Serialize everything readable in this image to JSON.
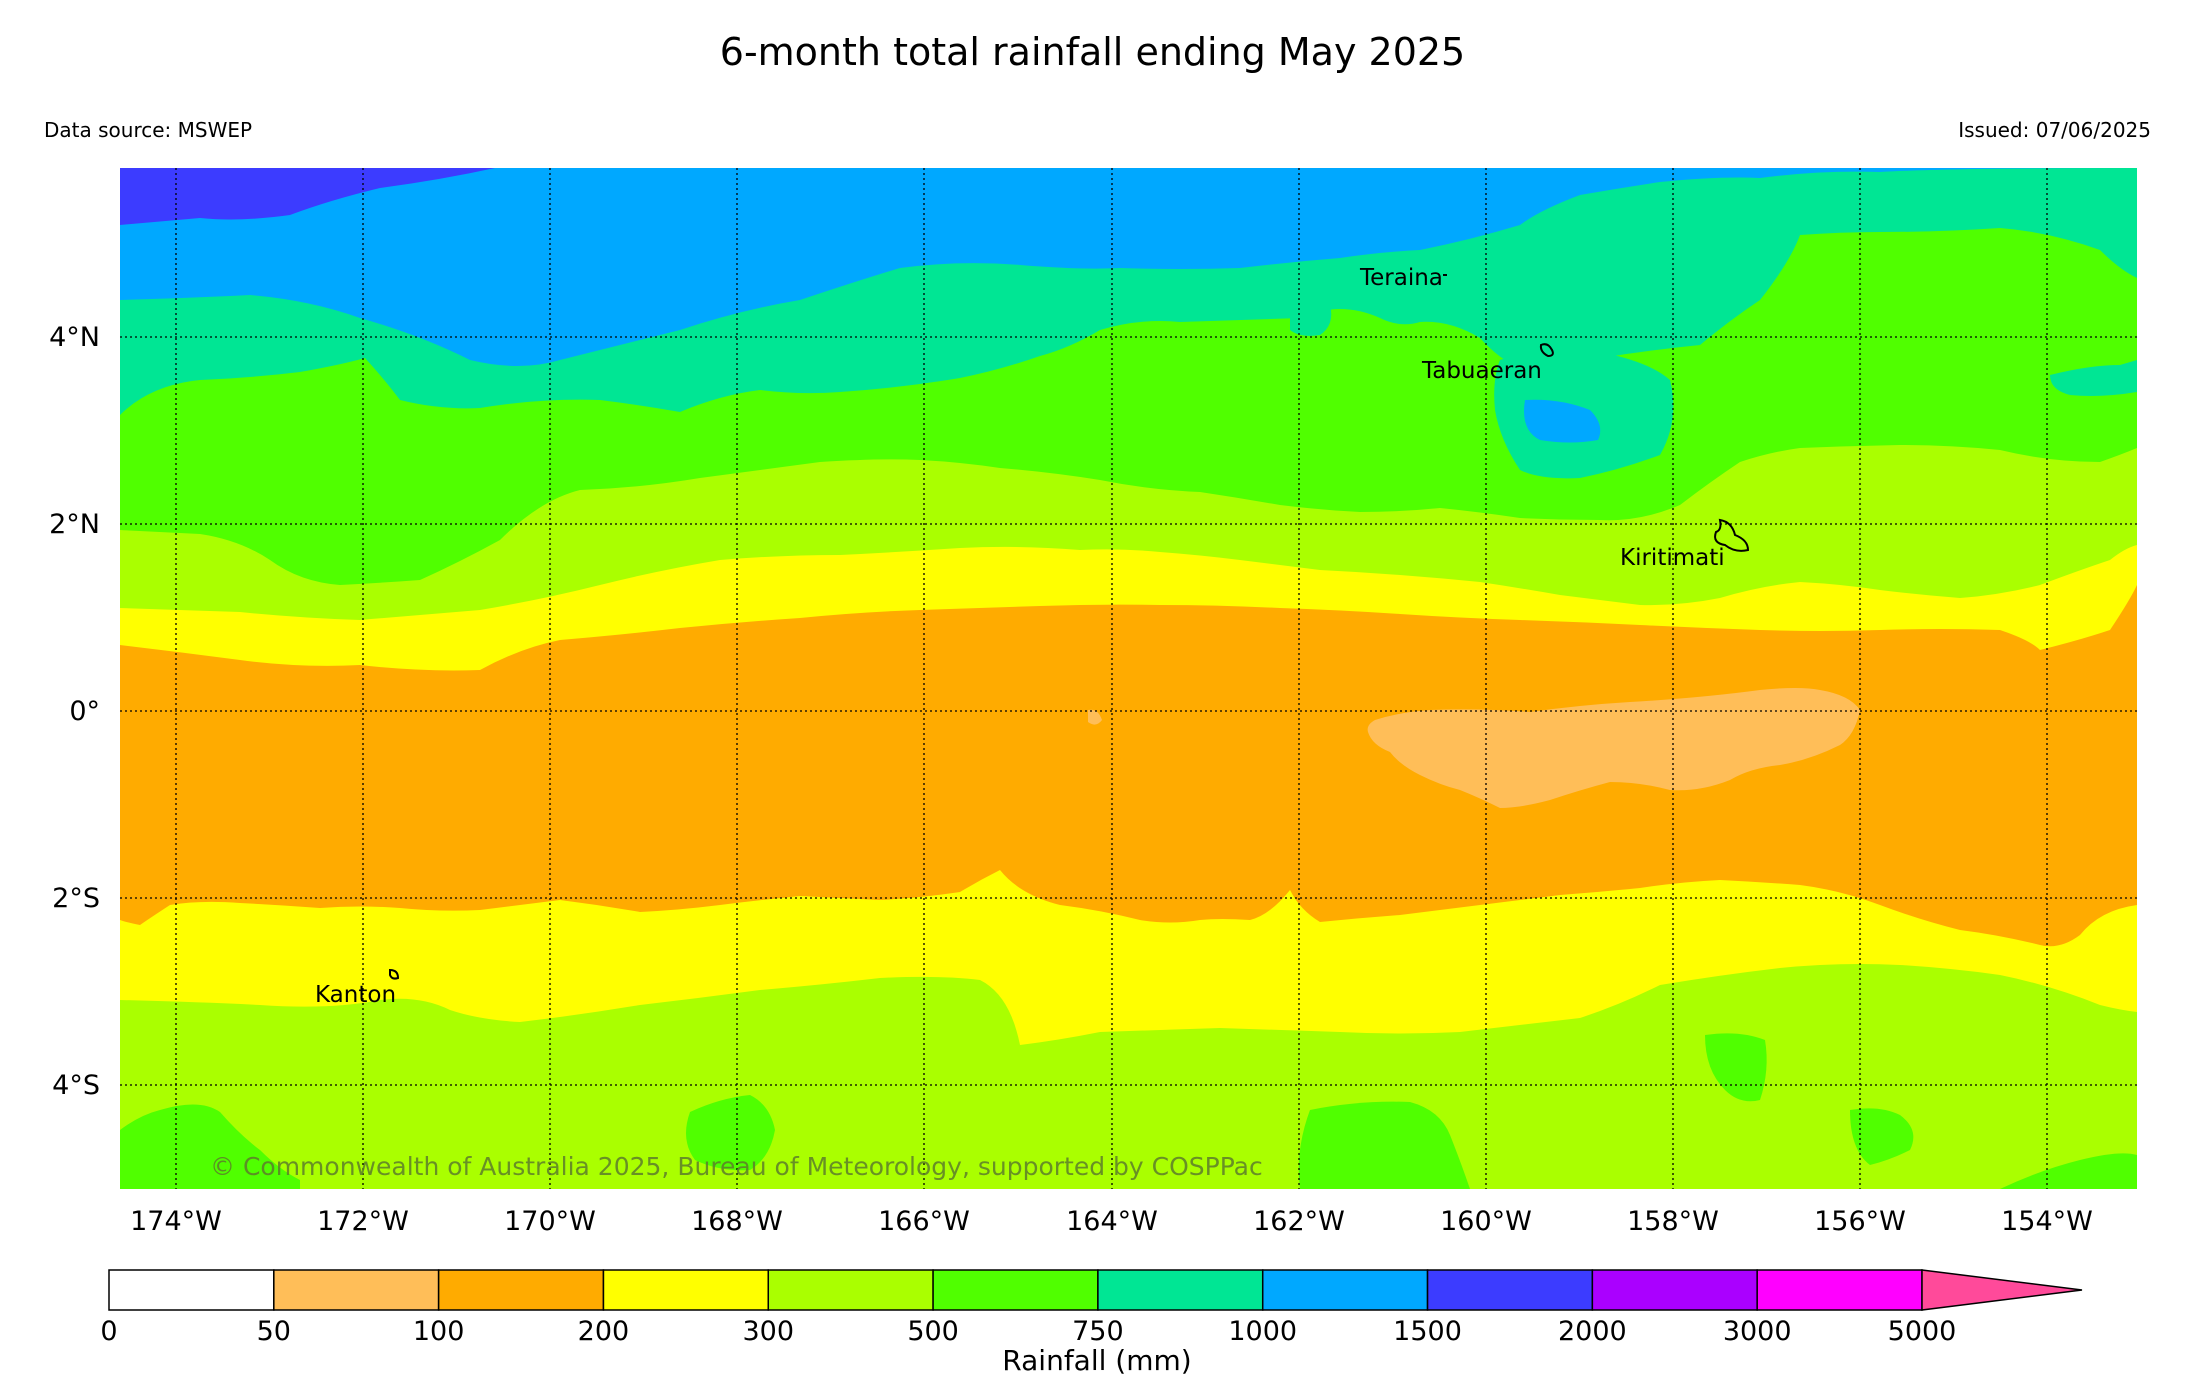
{
  "title": "6-month total rainfall ending May 2025",
  "data_source": "Data source: MSWEP",
  "issued": "Issued: 07/06/2025",
  "copyright": "© Commonwealth of Australia 2025, Bureau of Meteorology, supported by COSPPac",
  "lat_ticks": [
    "4°N",
    "2°N",
    "0°",
    "2°S",
    "4°S"
  ],
  "lon_ticks": [
    "174°W",
    "172°W",
    "170°W",
    "168°W",
    "166°W",
    "164°W",
    "162°W",
    "160°W",
    "158°W",
    "156°W",
    "154°W"
  ],
  "places": [
    "Teraina",
    "Tabuaeran",
    "Kiritimati",
    "Kanton"
  ],
  "colorbar": {
    "label": "Rainfall (mm)",
    "ticks": [
      "0",
      "50",
      "100",
      "200",
      "300",
      "500",
      "750",
      "1000",
      "1500",
      "2000",
      "3000",
      "5000"
    ],
    "colors": [
      "#ffffff",
      "#ffbe58",
      "#ffab00",
      "#ffff00",
      "#aaff00",
      "#50ff00",
      "#00e694",
      "#00a8ff",
      "#3c3cff",
      "#aa00ff",
      "#ff00ff",
      "#ff4a9a"
    ]
  }
}
